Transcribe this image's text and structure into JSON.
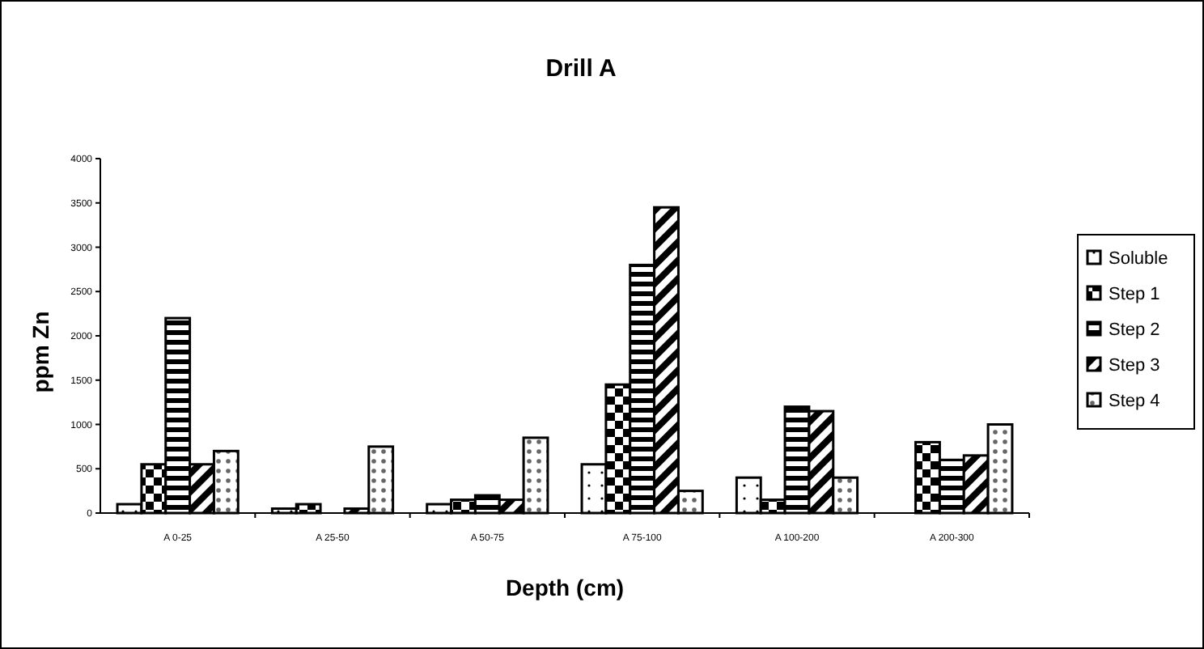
{
  "chart_data": {
    "type": "bar",
    "title": "Drill A",
    "xlabel": "Depth (cm)",
    "ylabel": "ppm Zn",
    "categories": [
      "A 0-25",
      "A 25-50",
      "A 50-75",
      "A 75-100",
      "A 100-200",
      "A 200-300"
    ],
    "series": [
      {
        "name": "Soluble",
        "color": "#000000",
        "values": [
          100,
          50,
          100,
          550,
          400,
          null
        ]
      },
      {
        "name": "Step 1",
        "color": "#000000",
        "values": [
          550,
          100,
          150,
          1450,
          150,
          800
        ]
      },
      {
        "name": "Step 2",
        "color": "#000000",
        "values": [
          2200,
          null,
          200,
          2800,
          1200,
          600
        ]
      },
      {
        "name": "Step 3",
        "color": "#000000",
        "values": [
          550,
          50,
          150,
          3450,
          1150,
          650
        ]
      },
      {
        "name": "Step 4",
        "color": "#000000",
        "values": [
          700,
          750,
          850,
          250,
          400,
          1000
        ]
      }
    ],
    "ylim": [
      0,
      4000
    ],
    "yticks": [
      0,
      500,
      1000,
      1500,
      2000,
      2500,
      3000,
      3500,
      4000
    ],
    "grid": false,
    "legend": "right"
  }
}
